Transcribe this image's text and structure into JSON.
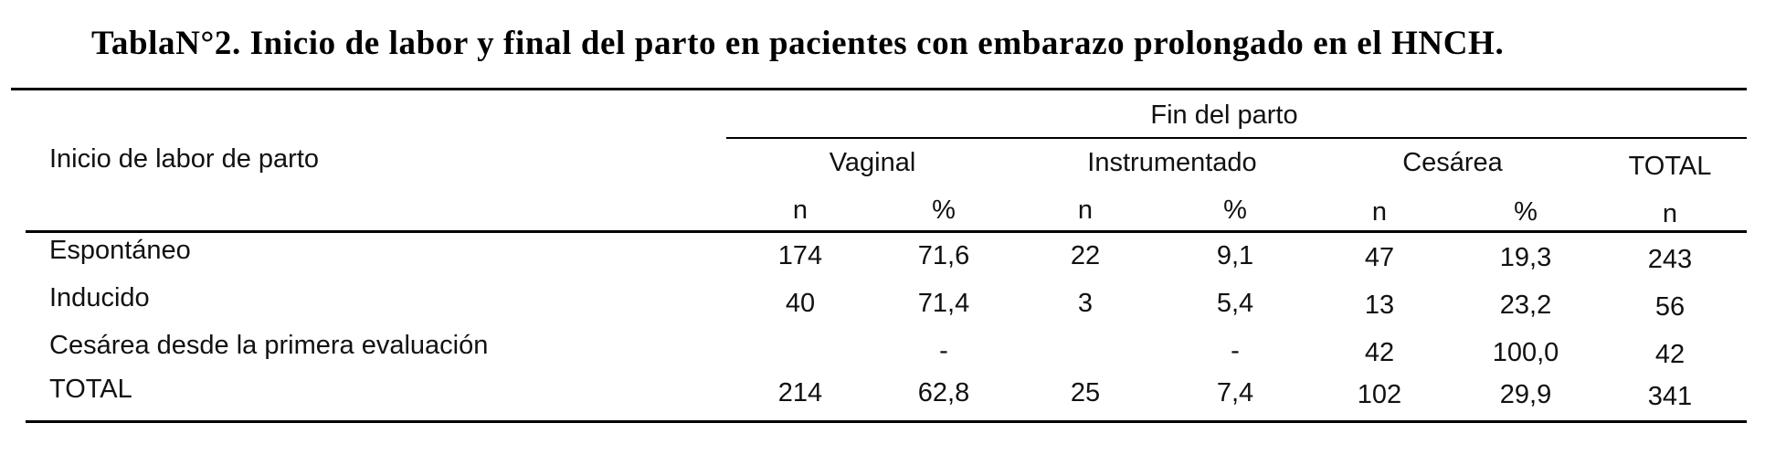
{
  "title": "TablaN°2. Inicio de labor y final del parto en pacientes con embarazo prolongado en el HNCH.",
  "header": {
    "row_label": "Inicio de labor de parto",
    "group": "Fin del parto",
    "columns": [
      "Vaginal",
      "Instrumentado",
      "Cesárea",
      "TOTAL"
    ],
    "subcolumns": [
      "n",
      "%",
      "n",
      "%",
      "n",
      "%",
      "n"
    ]
  },
  "rows": [
    {
      "label": "Espontáneo",
      "cells": [
        "174",
        "71,6",
        "22",
        "9,1",
        "47",
        "19,3",
        "243"
      ]
    },
    {
      "label": "Inducido",
      "cells": [
        "40",
        "71,4",
        "3",
        "5,4",
        "13",
        "23,2",
        "56"
      ]
    },
    {
      "label": "Cesárea desde la primera evaluación",
      "cells": [
        "",
        "-",
        "",
        "-",
        "42",
        "100,0",
        "42"
      ]
    },
    {
      "label": "TOTAL",
      "cells": [
        "214",
        "62,8",
        "25",
        "7,4",
        "102",
        "29,9",
        "341"
      ]
    }
  ]
}
